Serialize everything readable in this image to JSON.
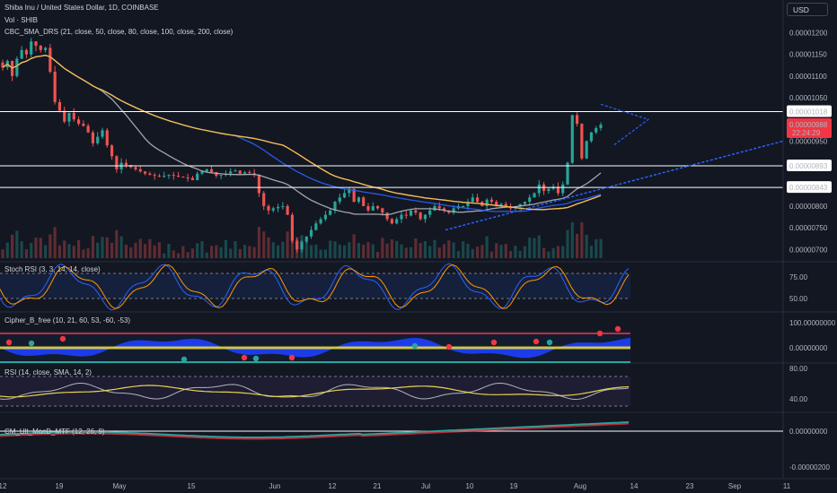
{
  "header": {
    "symbol_line": "Shiba Inu / United States Dollar, 1D, COINBASE",
    "vol_line": "Vol · SHIB",
    "indicator_line": "CBC_SMA_DRS (21, close, 50, close, 80, close, 100, close, 200, close)",
    "currency_button": "USD"
  },
  "colors": {
    "background": "#131722",
    "candle_up": "#26a69a",
    "candle_down": "#ef5350",
    "price_badge": "#f23645",
    "trendline": "#2962ff"
  },
  "price_axis": {
    "ticks": [
      "0.00001200",
      "0.00001150",
      "0.00001100",
      "0.00001050",
      "0.00000950",
      "0.00000800",
      "0.00000750",
      "0.00000700"
    ],
    "level_labels": [
      "0.00001018",
      "0.00000893",
      "0.00000843"
    ],
    "current_price": "0.00000988",
    "countdown": "22:24:29"
  },
  "time_axis": {
    "labels": [
      "12",
      "19",
      "May",
      "15",
      "Jun",
      "12",
      "21",
      "Jul",
      "10",
      "19",
      "Aug",
      "14",
      "23",
      "Sep",
      "11"
    ]
  },
  "panes": {
    "stoch": {
      "title": "Stoch RSI (3, 3, 14, 14, close)",
      "ticks": [
        "75.00",
        "50.00"
      ]
    },
    "cipher": {
      "title": "Cipher_B_free (10, 21, 60, 53, -60, -53)",
      "ticks": [
        "100.00000000",
        "0.00000000"
      ]
    },
    "rsi": {
      "title": "RSI (14, close, SMA, 14, 2)",
      "ticks": [
        "80.00",
        "40.00"
      ]
    },
    "macd": {
      "title": "CM_Ult_MacD_MTF (12, 26, 9)",
      "ticks": [
        "0.00000000",
        "-0.00000200"
      ]
    }
  },
  "chart_data": {
    "type": "candlestick",
    "symbol": "SHIBUSD",
    "timeframe": "1D",
    "x_start": "2021-04-10",
    "horizontal_levels": [
      1.018e-05,
      8.93e-06,
      8.43e-06
    ],
    "current_price": 9.88e-06,
    "close": [
      1.12e-05,
      1.135e-05,
      1.1e-05,
      1.14e-05,
      1.16e-05,
      1.15e-05,
      1.18e-05,
      1.17e-05,
      1.16e-05,
      1.165e-05,
      1.11e-05,
      1.04e-05,
      1.02e-05,
      9.95e-06,
      1.015e-05,
      1e-05,
      9.9e-06,
      9.85e-06,
      9.7e-06,
      9.45e-06,
      9.6e-06,
      9.75e-06,
      9.4e-06,
      9.15e-06,
      8.85e-06,
      9e-06,
      8.95e-06,
      8.9e-06,
      8.85e-06,
      8.8e-06,
      8.75e-06,
      8.72e-06,
      8.7e-06,
      8.68e-06,
      8.7e-06,
      8.72e-06,
      8.7e-06,
      8.68e-06,
      8.66e-06,
      8.65e-06,
      8.6e-06,
      8.75e-06,
      8.8e-06,
      8.85e-06,
      8.78e-06,
      8.7e-06,
      8.72e-06,
      8.75e-06,
      8.8e-06,
      8.82e-06,
      8.75e-06,
      8.78e-06,
      8.76e-06,
      8.72e-06,
      8.3e-06,
      8e-06,
      7.9e-06,
      7.95e-06,
      7.98e-06,
      8e-06,
      7.8e-06,
      7.2e-06,
      7e-06,
      7.18e-06,
      7.3e-06,
      7.45e-06,
      7.6e-06,
      7.7e-06,
      7.8e-06,
      7.9e-06,
      8.1e-06,
      8.2e-06,
      8.3e-06,
      8.4e-06,
      8.1e-06,
      8.2e-06,
      8e-06,
      7.9e-06,
      8e-06,
      7.95e-06,
      7.85e-06,
      7.7e-06,
      7.6e-06,
      7.7e-06,
      7.8e-06,
      7.78e-06,
      7.9e-06,
      7.85e-06,
      7.7e-06,
      7.8e-06,
      7.9e-06,
      8e-06,
      7.95e-06,
      7.9e-06,
      7.85e-06,
      7.95e-06,
      8e-06,
      8e-06,
      8.1e-06,
      8.2e-06,
      8.1e-06,
      8e-06,
      8.15e-06,
      8.1e-06,
      8e-06,
      8.05e-06,
      8e-06,
      7.95e-06,
      8e-06,
      8.05e-06,
      8.1e-06,
      8.2e-06,
      8.3e-06,
      8.5e-06,
      8.35e-06,
      8.4e-06,
      8.45e-06,
      8.3e-06,
      8.5e-06,
      9e-06,
      1.01e-05,
      9.9e-06,
      9.1e-06,
      9.5e-06,
      9.7e-06,
      9.8e-06,
      9.88e-06
    ],
    "sma_lines": [
      {
        "period": 21,
        "color": "#b2b5be"
      },
      {
        "period": 50,
        "color": "#2962ff"
      },
      {
        "period": 80,
        "color": "#9c27b0"
      },
      {
        "period": 100,
        "color": "#f23645"
      },
      {
        "period": 200,
        "color": "#e8d44d"
      }
    ],
    "ylim": [
      6.8e-06,
      1.23e-05
    ],
    "y_scale": "linear",
    "legend": "top-left"
  }
}
